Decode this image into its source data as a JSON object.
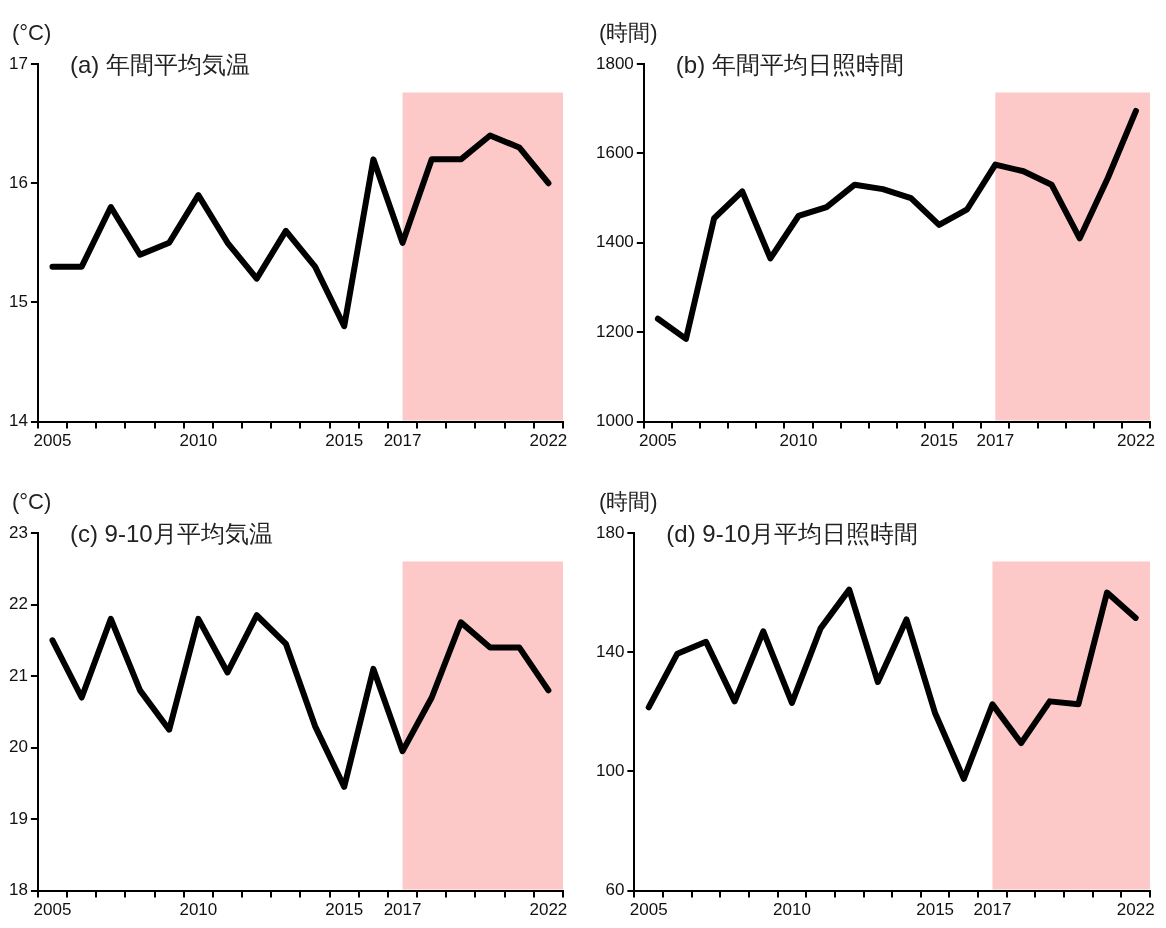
{
  "chart_data": [
    {
      "type": "line",
      "title": "(a) 年間平均気温",
      "ylabel": "(°C)",
      "categories": [
        "2005",
        null,
        null,
        null,
        null,
        "2010",
        null,
        null,
        null,
        null,
        "2015",
        null,
        "2017",
        null,
        null,
        null,
        null,
        "2022"
      ],
      "series": [
        {
          "color": "#000000",
          "values": [
            15.3,
            15.3,
            15.8,
            15.4,
            15.5,
            15.9,
            15.5,
            15.2,
            15.6,
            15.3,
            14.8,
            16.2,
            15.5,
            16.2,
            16.2,
            16.4,
            16.3,
            16.0
          ]
        }
      ],
      "ylim": [
        14,
        17
      ],
      "yticks": [
        14,
        15,
        16,
        17
      ],
      "bands": [
        {
          "axis": "x",
          "from": "2017",
          "to": "2022",
          "color": "#fcc8c8"
        }
      ],
      "grid": false,
      "legend": false,
      "marker": "none",
      "line_style": "solid"
    },
    {
      "type": "line",
      "title": "(b) 年間平均日照時間",
      "ylabel": "(時間)",
      "categories": [
        "2005",
        null,
        null,
        null,
        null,
        "2010",
        null,
        null,
        null,
        null,
        "2015",
        null,
        "2017",
        null,
        null,
        null,
        null,
        "2022"
      ],
      "series": [
        {
          "color": "#000000",
          "values": [
            1230,
            1185,
            1455,
            1515,
            1365,
            1460,
            1480,
            1530,
            1520,
            1500,
            1440,
            1475,
            1575,
            1560,
            1530,
            1410,
            1545,
            1695
          ]
        }
      ],
      "ylim": [
        1000,
        1800
      ],
      "yticks": [
        1000,
        1200,
        1400,
        1600,
        1800
      ],
      "bands": [
        {
          "axis": "x",
          "from": "2017",
          "to": "2022",
          "color": "#fcc8c8"
        }
      ],
      "grid": false,
      "legend": false,
      "marker": "none",
      "line_style": "solid"
    },
    {
      "type": "line",
      "title": "(c) 9-10月平均気温",
      "ylabel": "(°C)",
      "categories": [
        "2005",
        null,
        null,
        null,
        null,
        "2010",
        null,
        null,
        null,
        null,
        "2015",
        null,
        "2017",
        null,
        null,
        null,
        null,
        "2022"
      ],
      "series": [
        {
          "color": "#000000",
          "values": [
            21.5,
            20.7,
            21.8,
            20.8,
            20.25,
            21.8,
            21.05,
            21.85,
            21.45,
            20.3,
            19.45,
            21.1,
            19.95,
            20.7,
            21.75,
            21.4,
            21.4,
            20.8
          ]
        }
      ],
      "ylim": [
        18,
        23
      ],
      "yticks": [
        18,
        19,
        20,
        21,
        22,
        23
      ],
      "bands": [
        {
          "axis": "x",
          "from": "2017",
          "to": "2022",
          "color": "#fcc8c8"
        }
      ],
      "grid": false,
      "legend": false,
      "marker": "none",
      "line_style": "solid"
    },
    {
      "type": "line",
      "title": "(d) 9-10月平均日照時間",
      "ylabel": "(時間)",
      "categories": [
        "2005",
        null,
        null,
        null,
        null,
        "2010",
        null,
        null,
        null,
        null,
        "2015",
        null,
        "2017",
        null,
        null,
        null,
        null,
        "2022"
      ],
      "series": [
        {
          "color": "#000000",
          "values": [
            121.5,
            139.5,
            143.5,
            123.5,
            147,
            123,
            148,
            161,
            130,
            151,
            119.5,
            97.5,
            122.5,
            109.5,
            123.5,
            122.5,
            160,
            151.5
          ]
        }
      ],
      "ylim": [
        60,
        180
      ],
      "yticks": [
        60,
        100,
        140,
        180
      ],
      "bands": [
        {
          "axis": "x",
          "from": "2017",
          "to": "2022",
          "color": "#fcc8c8"
        }
      ],
      "grid": false,
      "legend": false,
      "marker": "none",
      "line_style": "solid"
    }
  ]
}
